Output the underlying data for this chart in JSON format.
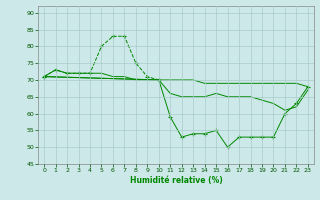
{
  "xlabel": "Humidité relative (%)",
  "background_color": "#cce8e8",
  "grid_color": "#aacccc",
  "line_color": "#008800",
  "xlim": [
    -0.5,
    23.5
  ],
  "ylim": [
    45,
    92
  ],
  "yticks": [
    45,
    50,
    55,
    60,
    65,
    70,
    75,
    80,
    85,
    90
  ],
  "xticks": [
    0,
    1,
    2,
    3,
    4,
    5,
    6,
    7,
    8,
    9,
    10,
    11,
    12,
    13,
    14,
    15,
    16,
    17,
    18,
    19,
    20,
    21,
    22,
    23
  ],
  "series1_x": [
    0,
    1,
    2,
    3,
    4,
    5,
    6,
    7,
    8,
    9,
    10
  ],
  "series1_y": [
    71,
    73,
    72,
    72,
    72,
    80,
    83,
    83,
    75,
    71,
    70
  ],
  "series2_x": [
    0,
    1,
    2,
    3,
    4,
    5,
    6,
    7,
    8,
    9,
    10,
    11,
    12,
    13,
    14,
    15,
    16,
    17,
    18,
    19,
    20,
    21,
    22,
    23
  ],
  "series2_y": [
    71,
    73,
    72,
    72,
    72,
    72,
    71,
    71,
    70,
    70,
    70,
    70,
    70,
    70,
    69,
    69,
    69,
    69,
    69,
    69,
    69,
    69,
    69,
    68
  ],
  "series3_x": [
    0,
    10,
    11,
    12,
    13,
    14,
    15,
    16,
    17,
    18,
    19,
    20,
    21,
    22,
    23
  ],
  "series3_y": [
    71,
    70,
    59,
    53,
    54,
    54,
    55,
    50,
    53,
    53,
    53,
    53,
    60,
    63,
    68
  ],
  "series4_x": [
    0,
    10,
    11,
    12,
    13,
    14,
    15,
    16,
    17,
    18,
    19,
    20,
    21,
    22,
    23
  ],
  "series4_y": [
    71,
    70,
    66,
    65,
    65,
    65,
    66,
    65,
    65,
    65,
    64,
    63,
    61,
    62,
    67
  ]
}
